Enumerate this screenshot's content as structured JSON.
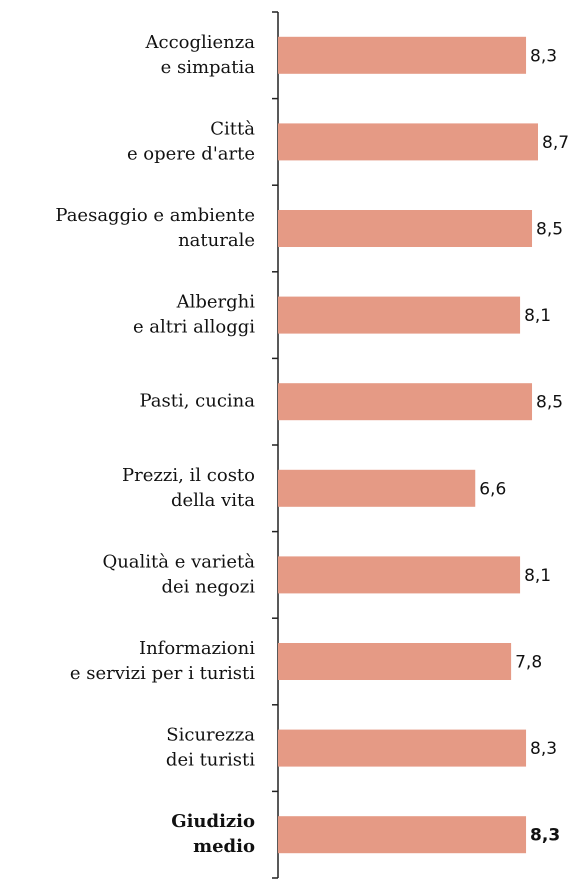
{
  "chart_data": {
    "type": "barh",
    "categories": [
      [
        "Accoglienza",
        "e simpatia"
      ],
      [
        "Città",
        "e opere d'arte"
      ],
      [
        "Paesaggio e ambiente",
        "naturale"
      ],
      [
        "Alberghi",
        "e altri alloggi"
      ],
      [
        "Pasti, cucina"
      ],
      [
        "Prezzi, il costo",
        "della vita"
      ],
      [
        "Qualità e varietà",
        "dei negozi"
      ],
      [
        "Informazioni",
        "e servizi per i turisti"
      ],
      [
        "Sicurezza",
        "dei turisti"
      ],
      [
        "Giudizio",
        "medio"
      ]
    ],
    "values": [
      8.3,
      8.7,
      8.5,
      8.1,
      8.5,
      6.6,
      8.1,
      7.8,
      8.3,
      8.3
    ],
    "value_labels": [
      "8,3",
      "8,7",
      "8,5",
      "8,1",
      "8,5",
      "6,6",
      "8,1",
      "7,8",
      "8,3",
      "8,3"
    ],
    "color": "#e59a85",
    "bold": [
      false,
      false,
      false,
      false,
      false,
      false,
      false,
      false,
      false,
      true
    ]
  }
}
